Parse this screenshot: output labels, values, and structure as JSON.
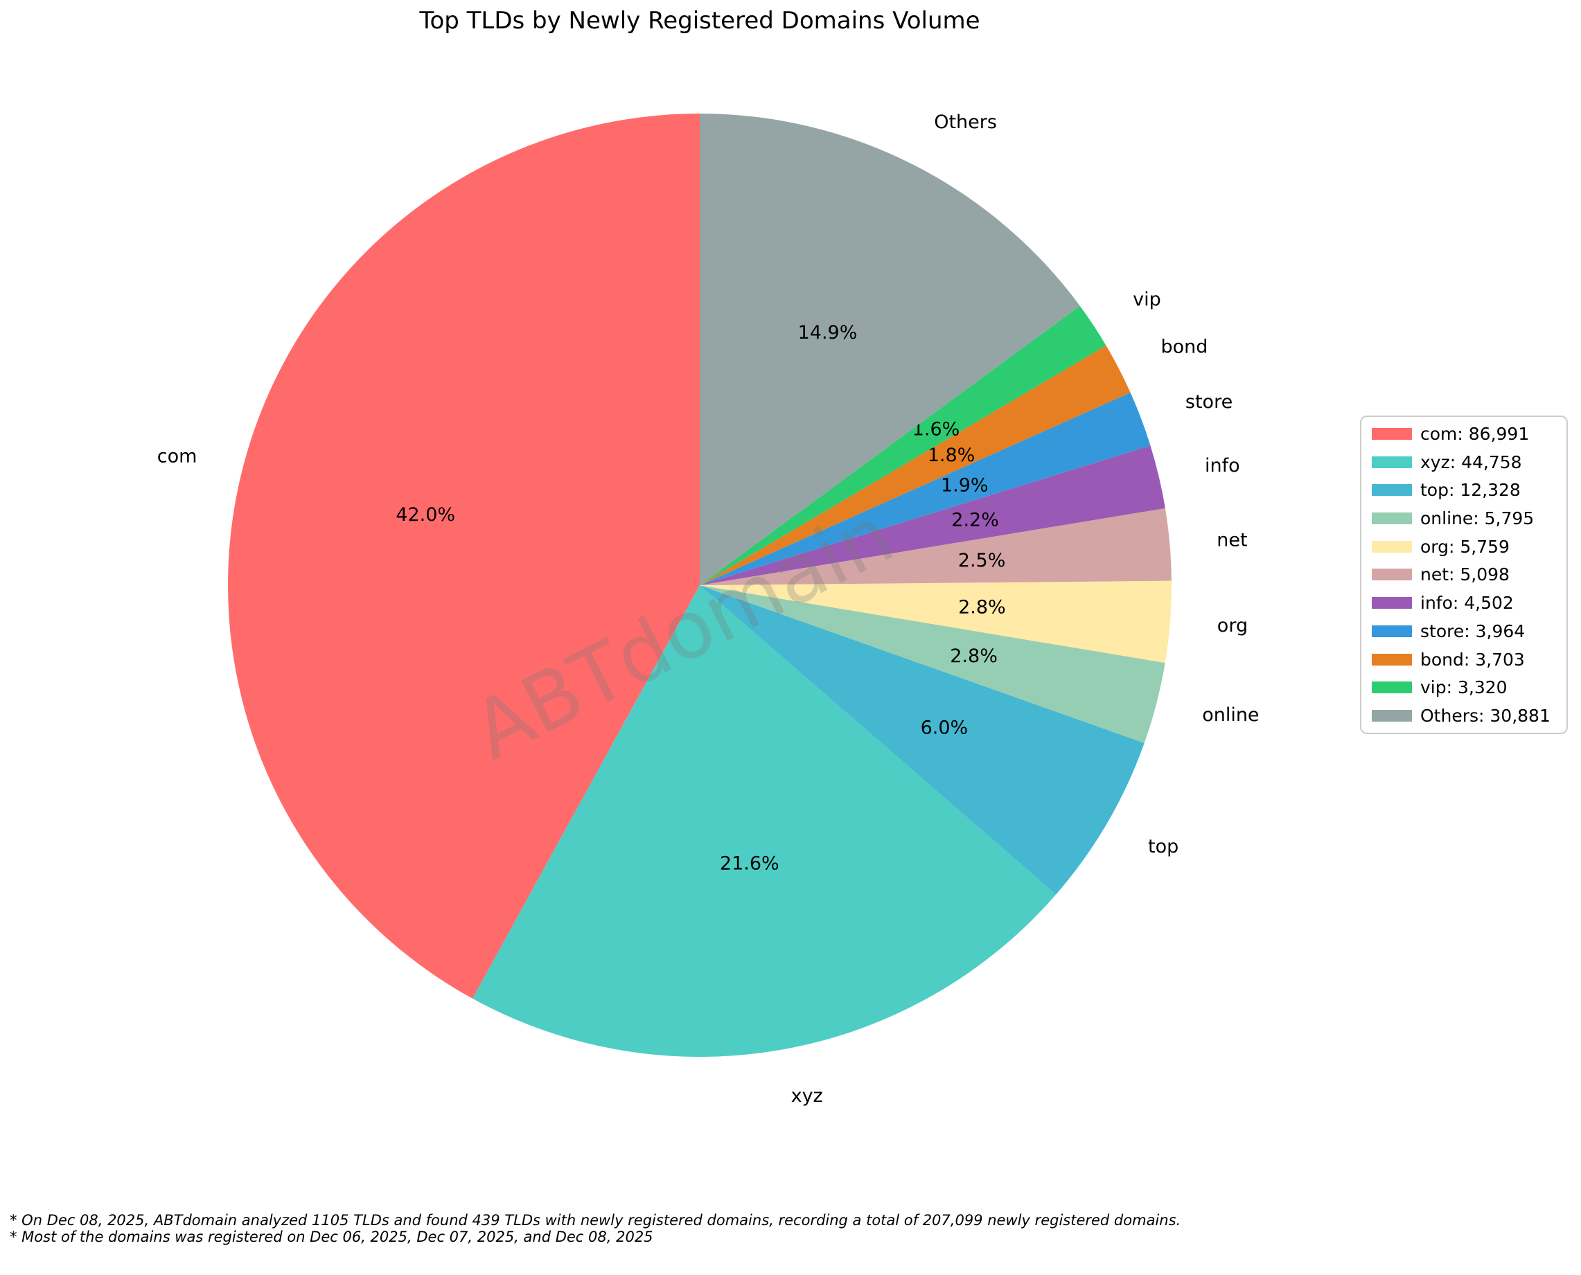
{
  "title": "Top TLDs by Newly Registered Domains Volume",
  "watermark": "ABTdomain",
  "footnotes": [
    "* On Dec 08, 2025, ABTdomain analyzed 1105 TLDs and found 439 TLDs with newly registered domains, recording a total of 207,099 newly registered domains.",
    "* Most of the domains was registered on Dec 06, 2025, Dec 07, 2025, and Dec 08, 2025"
  ],
  "chart_data": {
    "type": "pie",
    "title": "Top TLDs by Newly Registered Domains Volume",
    "total": 207099,
    "start_angle": 90,
    "direction": "counterclockwise",
    "label_distance": 1.1,
    "pct_distance": 0.6,
    "center": [
      1010,
      845
    ],
    "radius": 681,
    "legend_position": "center right",
    "text_color": "#000000",
    "background_color": "#ffffff",
    "slices": [
      {
        "label": "com",
        "value": 86991,
        "pct_label": "42.0%",
        "legend_label": "com: 86,991",
        "color": "#FF6B6B"
      },
      {
        "label": "xyz",
        "value": 44758,
        "pct_label": "21.6%",
        "legend_label": "xyz: 44,758",
        "color": "#4ECDC4"
      },
      {
        "label": "top",
        "value": 12328,
        "pct_label": "6.0%",
        "legend_label": "top: 12,328",
        "color": "#45B7D1"
      },
      {
        "label": "online",
        "value": 5795,
        "pct_label": "2.8%",
        "legend_label": "online: 5,795",
        "color": "#96CEB4"
      },
      {
        "label": "org",
        "value": 5759,
        "pct_label": "2.8%",
        "legend_label": "org: 5,759",
        "color": "#FFEAA7"
      },
      {
        "label": "net",
        "value": 5098,
        "pct_label": "2.5%",
        "legend_label": "net: 5,098",
        "color": "#D4A5A5"
      },
      {
        "label": "info",
        "value": 4502,
        "pct_label": "2.2%",
        "legend_label": "info: 4,502",
        "color": "#9B59B6"
      },
      {
        "label": "store",
        "value": 3964,
        "pct_label": "1.9%",
        "legend_label": "store: 3,964",
        "color": "#3498DB"
      },
      {
        "label": "bond",
        "value": 3703,
        "pct_label": "1.8%",
        "legend_label": "bond: 3,703",
        "color": "#E67E22"
      },
      {
        "label": "vip",
        "value": 3320,
        "pct_label": "1.6%",
        "legend_label": "vip: 3,320",
        "color": "#2ECC71"
      },
      {
        "label": "Others",
        "value": 30881,
        "pct_label": "14.9%",
        "legend_label": "Others: 30,881",
        "color": "#95A5A6"
      }
    ]
  }
}
